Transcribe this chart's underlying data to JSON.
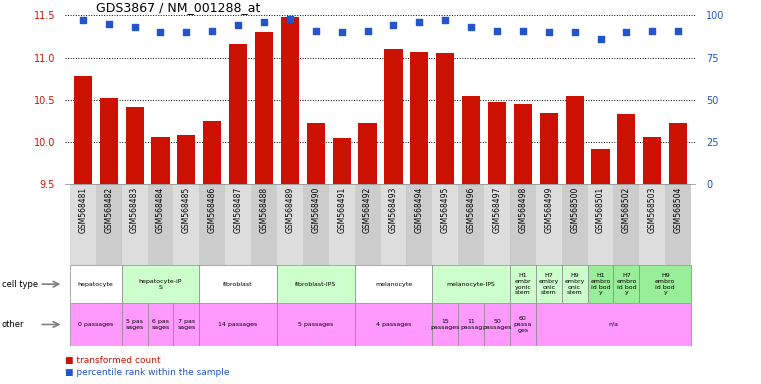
{
  "title": "GDS3867 / NM_001288_at",
  "samples": [
    "GSM568481",
    "GSM568482",
    "GSM568483",
    "GSM568484",
    "GSM568485",
    "GSM568486",
    "GSM568487",
    "GSM568488",
    "GSM568489",
    "GSM568490",
    "GSM568491",
    "GSM568492",
    "GSM568493",
    "GSM568494",
    "GSM568495",
    "GSM568496",
    "GSM568497",
    "GSM568498",
    "GSM568499",
    "GSM568500",
    "GSM568501",
    "GSM568502",
    "GSM568503",
    "GSM568504"
  ],
  "bar_values": [
    10.78,
    10.52,
    10.42,
    10.06,
    10.08,
    10.25,
    11.16,
    11.3,
    11.48,
    10.22,
    10.05,
    10.22,
    11.1,
    11.07,
    11.05,
    10.55,
    10.47,
    10.45,
    10.35,
    10.55,
    9.92,
    10.33,
    10.06,
    10.22
  ],
  "percentile_values": [
    97,
    95,
    93,
    90,
    90,
    91,
    94,
    96,
    98,
    91,
    90,
    91,
    94,
    96,
    97,
    93,
    91,
    91,
    90,
    90,
    86,
    90,
    91,
    91
  ],
  "ylim_left": [
    9.5,
    11.5
  ],
  "ylim_right": [
    0,
    100
  ],
  "yticks_left": [
    9.5,
    10.0,
    10.5,
    11.0,
    11.5
  ],
  "yticks_right": [
    0,
    25,
    50,
    75,
    100
  ],
  "bar_color": "#cc1100",
  "dot_color": "#2255cc",
  "bg_color": "#ffffff",
  "tick_label_color_left": "#cc1100",
  "tick_label_color_right": "#2255cc",
  "cell_type_info": [
    {
      "start": 0,
      "end": 2,
      "label": "hepatocyte",
      "color": "#ffffff"
    },
    {
      "start": 2,
      "end": 5,
      "label": "hepatocyte-iP\nS",
      "color": "#ccffcc"
    },
    {
      "start": 5,
      "end": 8,
      "label": "fibroblast",
      "color": "#ffffff"
    },
    {
      "start": 8,
      "end": 11,
      "label": "fibroblast-IPS",
      "color": "#ccffcc"
    },
    {
      "start": 11,
      "end": 14,
      "label": "melanocyte",
      "color": "#ffffff"
    },
    {
      "start": 14,
      "end": 17,
      "label": "melanocyte-IPS",
      "color": "#ccffcc"
    },
    {
      "start": 17,
      "end": 18,
      "label": "H1\nembr\nyonic\nstem",
      "color": "#ccffcc"
    },
    {
      "start": 18,
      "end": 19,
      "label": "H7\nembry\nonic\nstem",
      "color": "#ccffcc"
    },
    {
      "start": 19,
      "end": 20,
      "label": "H9\nembry\nonic\nstem",
      "color": "#ccffcc"
    },
    {
      "start": 20,
      "end": 21,
      "label": "H1\nembro\nid bod\ny",
      "color": "#99ee99"
    },
    {
      "start": 21,
      "end": 22,
      "label": "H7\nembro\nid bod\ny",
      "color": "#99ee99"
    },
    {
      "start": 22,
      "end": 24,
      "label": "H9\nembro\nid bod\ny",
      "color": "#99ee99"
    }
  ],
  "other_info": [
    {
      "start": 0,
      "end": 2,
      "label": "0 passages",
      "color": "#ff99ff"
    },
    {
      "start": 2,
      "end": 3,
      "label": "5 pas\nsages",
      "color": "#ff99ff"
    },
    {
      "start": 3,
      "end": 4,
      "label": "6 pas\nsages",
      "color": "#ff99ff"
    },
    {
      "start": 4,
      "end": 5,
      "label": "7 pas\nsages",
      "color": "#ff99ff"
    },
    {
      "start": 5,
      "end": 8,
      "label": "14 passages",
      "color": "#ff99ff"
    },
    {
      "start": 8,
      "end": 11,
      "label": "5 passages",
      "color": "#ff99ff"
    },
    {
      "start": 11,
      "end": 14,
      "label": "4 passages",
      "color": "#ff99ff"
    },
    {
      "start": 14,
      "end": 15,
      "label": "15\npassages",
      "color": "#ff99ff"
    },
    {
      "start": 15,
      "end": 16,
      "label": "11\npassag",
      "color": "#ff99ff"
    },
    {
      "start": 16,
      "end": 17,
      "label": "50\npassages",
      "color": "#ff99ff"
    },
    {
      "start": 17,
      "end": 18,
      "label": "60\npassa\nges",
      "color": "#ff99ff"
    },
    {
      "start": 18,
      "end": 24,
      "label": "n/a",
      "color": "#ff99ff"
    }
  ]
}
